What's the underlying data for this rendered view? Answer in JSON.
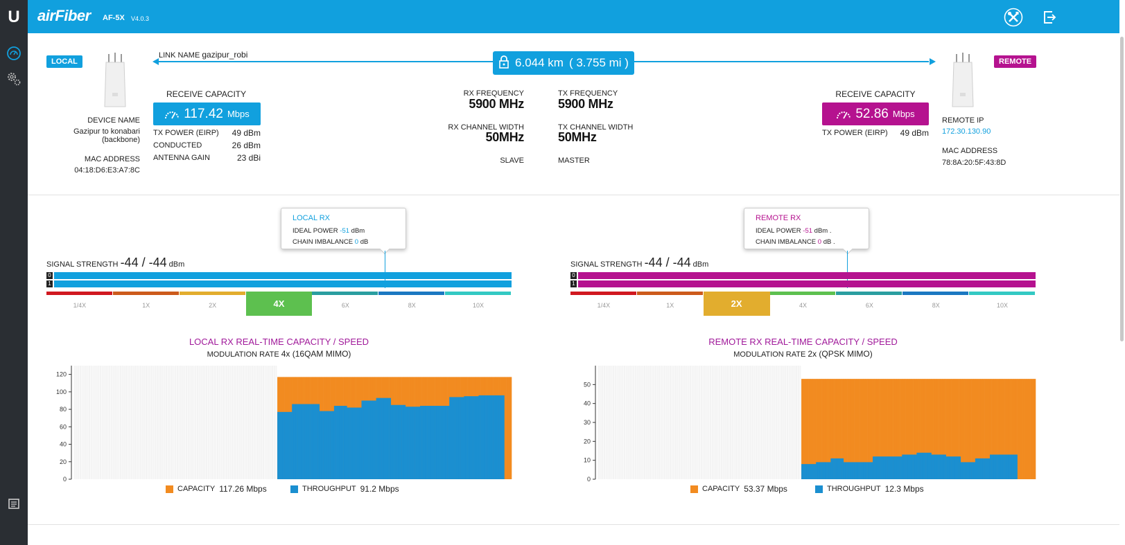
{
  "header": {
    "brand": "airFiber",
    "model": "AF-5X",
    "version": "V4.0.3",
    "tools_icon": "tools-icon",
    "logout_icon": "logout-icon"
  },
  "sidebar": {
    "logo": "U",
    "items": [
      {
        "icon": "dashboard-gauge-icon"
      },
      {
        "icon": "settings-gears-icon"
      },
      {
        "icon": "log-icon"
      }
    ]
  },
  "link": {
    "name_label": "LINK NAME",
    "name_value": "gazipur_robi",
    "distance_km": "6.044 km",
    "distance_mi": "( 3.755 mi )",
    "lock_icon": "lock-icon"
  },
  "local": {
    "badge": "LOCAL",
    "receive_capacity_label": "RECEIVE CAPACITY",
    "receive_capacity_value": "117.42",
    "receive_capacity_unit": "Mbps",
    "device_name_label": "DEVICE NAME",
    "device_name_line1": "Gazipur to konabari",
    "device_name_line2": "(backbone)",
    "mac_label": "MAC ADDRESS",
    "mac_value": "04:18:D6:E3:A7:8C",
    "tx_power_label": "TX POWER (EIRP)",
    "tx_power_value": "49 dBm",
    "conducted_label": "CONDUCTED",
    "conducted_value": "26 dBm",
    "antenna_gain_label": "ANTENNA GAIN",
    "antenna_gain_value": "23 dBi",
    "color": "#11a0de"
  },
  "remote": {
    "badge": "REMOTE",
    "receive_capacity_label": "RECEIVE CAPACITY",
    "receive_capacity_value": "52.86",
    "receive_capacity_unit": "Mbps",
    "tx_power_label": "TX POWER (EIRP)",
    "tx_power_value": "49 dBm",
    "remote_ip_label": "REMOTE IP",
    "remote_ip_value": "172.30.130.90",
    "mac_label": "MAC ADDRESS",
    "mac_value": "78:8A:20:5F:43:8D",
    "color": "#b5128f"
  },
  "radio": {
    "rx_freq_label": "RX FREQUENCY",
    "rx_freq_value": "5900 MHz",
    "tx_freq_label": "TX FREQUENCY",
    "tx_freq_value": "5900 MHz",
    "rx_width_label": "RX CHANNEL WIDTH",
    "rx_width_value": "50MHz",
    "tx_width_label": "TX CHANNEL WIDTH",
    "tx_width_value": "50MHz",
    "local_role": "SLAVE",
    "remote_role": "MASTER"
  },
  "local_rx": {
    "tooltip_title": "LOCAL RX",
    "ideal_power_label": "IDEAL POWER",
    "ideal_power_value": "-51",
    "ideal_power_unit": "dBm",
    "chain_imbalance_label": "CHAIN IMBALANCE",
    "chain_imbalance_value": "0",
    "chain_imbalance_unit": "dB",
    "signal_label": "SIGNAL STRENGTH",
    "signal_value": "-44 / -44",
    "signal_unit": "dBm",
    "chain0": "0",
    "chain1": "1",
    "modulation_steps": [
      "1/4X",
      "1X",
      "2X",
      "4X",
      "6X",
      "8X",
      "10X"
    ],
    "active_modulation": "4X"
  },
  "remote_rx": {
    "tooltip_title": "REMOTE RX",
    "ideal_power_label": "IDEAL POWER",
    "ideal_power_value": "-51",
    "ideal_power_unit": "dBm .",
    "chain_imbalance_label": "CHAIN IMBALANCE",
    "chain_imbalance_value": "0",
    "chain_imbalance_unit": "dB .",
    "signal_label": "SIGNAL STRENGTH",
    "signal_value": "-44 / -44",
    "signal_unit": "dBm",
    "chain0": "0",
    "chain1": "1",
    "modulation_steps": [
      "1/4X",
      "1X",
      "2X",
      "4X",
      "6X",
      "8X",
      "10X"
    ],
    "active_modulation": "2X"
  },
  "modulation_colors": [
    "#d0181f",
    "#cc5a1b",
    "#e2ad2e",
    "#5dc04f",
    "#2a9ea0",
    "#1b78c1",
    "#33c9c3"
  ],
  "local_chart": {
    "title": "LOCAL RX  REAL-TIME CAPACITY / SPEED",
    "sub_label": "MODULATION RATE",
    "sub_value": "4x (16QAM MIMO)",
    "legend_capacity_label": "CAPACITY",
    "legend_capacity_value": "117.26 Mbps",
    "legend_throughput_label": "THROUGHPUT",
    "legend_throughput_value": "91.2 Mbps"
  },
  "remote_chart": {
    "title": "REMOTE RX  REAL-TIME CAPACITY / SPEED",
    "sub_label": "MODULATION RATE",
    "sub_value": "2x (QPSK MIMO)",
    "legend_capacity_label": "CAPACITY",
    "legend_capacity_value": "53.37 Mbps",
    "legend_throughput_label": "THROUGHPUT",
    "legend_throughput_value": "12.3 Mbps"
  },
  "chart_data": [
    {
      "type": "bar",
      "title": "LOCAL RX  REAL-TIME CAPACITY / SPEED",
      "ylim": [
        0,
        130
      ],
      "yticks": [
        0,
        20,
        40,
        60,
        80,
        100,
        120
      ],
      "series": [
        {
          "name": "CAPACITY",
          "color": "#f28b20",
          "values": [
            117,
            117,
            117,
            117,
            117,
            117,
            117,
            117,
            117,
            117,
            117,
            117,
            117,
            117,
            117,
            117,
            117,
            117,
            117,
            117,
            117,
            117,
            117,
            117,
            117,
            117,
            117,
            117,
            117,
            117,
            117,
            117,
            117,
            117,
            117,
            117,
            117,
            117,
            117,
            117,
            117,
            117,
            117,
            117,
            117,
            117,
            117,
            117,
            117,
            117,
            117,
            117,
            117,
            117,
            117,
            117,
            117,
            117,
            117,
            117,
            117,
            117,
            117,
            117,
            117,
            117,
            117,
            117,
            117,
            117,
            117,
            117,
            117,
            117,
            117,
            117,
            117,
            117,
            117,
            117,
            117,
            117,
            117,
            117,
            117,
            117,
            117,
            117,
            117,
            117,
            117,
            117,
            117,
            117,
            117,
            117,
            117,
            117,
            117,
            117,
            117,
            117,
            117,
            117,
            117,
            117,
            117,
            117,
            117,
            117,
            117,
            117,
            117,
            117,
            117,
            117,
            117,
            117,
            117,
            117,
            117,
            117,
            117,
            117,
            117,
            117,
            117,
            117
          ]
        },
        {
          "name": "THROUGHPUT",
          "color": "#1b8fd0",
          "values": [
            77,
            77,
            77,
            77,
            77,
            77,
            77,
            77,
            86,
            86,
            86,
            86,
            86,
            86,
            86,
            86,
            86,
            86,
            86,
            86,
            86,
            86,
            86,
            78,
            78,
            78,
            78,
            78,
            78,
            78,
            78,
            84,
            84,
            84,
            84,
            84,
            84,
            84,
            82,
            82,
            82,
            82,
            82,
            82,
            82,
            82,
            90,
            90,
            90,
            90,
            90,
            90,
            90,
            90,
            93,
            93,
            93,
            93,
            93,
            93,
            93,
            93,
            85,
            85,
            85,
            85,
            85,
            85,
            85,
            85,
            83,
            83,
            83,
            83,
            83,
            83,
            83,
            83,
            84,
            84,
            84,
            84,
            84,
            84,
            84,
            84,
            84,
            84,
            84,
            84,
            84,
            84,
            84,
            84,
            94,
            94,
            94,
            94,
            94,
            94,
            94,
            94,
            95,
            95,
            95,
            95,
            95,
            95,
            95,
            95,
            96,
            96,
            96,
            96,
            96,
            96,
            96,
            96,
            96,
            96,
            96,
            96,
            96,
            96
          ]
        }
      ],
      "empty_slots_before": 111
    },
    {
      "type": "bar",
      "title": "REMOTE RX  REAL-TIME CAPACITY / SPEED",
      "ylim": [
        0,
        60
      ],
      "yticks": [
        0,
        10,
        20,
        30,
        40,
        50
      ],
      "series": [
        {
          "name": "CAPACITY",
          "color": "#f28b20",
          "values": [
            53,
            53,
            53,
            53,
            53,
            53,
            53,
            53,
            53,
            53,
            53,
            53,
            53,
            53,
            53,
            53,
            53,
            53,
            53,
            53,
            53,
            53,
            53,
            53,
            53,
            53,
            53,
            53,
            53,
            53,
            53,
            53,
            53,
            53,
            53,
            53,
            53,
            53,
            53,
            53,
            53,
            53,
            53,
            53,
            53,
            53,
            53,
            53,
            53,
            53,
            53,
            53,
            53,
            53,
            53,
            53,
            53,
            53,
            53,
            53,
            53,
            53,
            53,
            53,
            53,
            53,
            53,
            53,
            53,
            53,
            53,
            53,
            53,
            53,
            53,
            53,
            53,
            53,
            53,
            53,
            53,
            53,
            53,
            53,
            53,
            53,
            53,
            53,
            53,
            53,
            53,
            53,
            53,
            53,
            53,
            53,
            53,
            53,
            53,
            53,
            53,
            53,
            53,
            53,
            53,
            53,
            53,
            53,
            53,
            53,
            53,
            53,
            53,
            53,
            53,
            53,
            53,
            53,
            53,
            53,
            53,
            53,
            53,
            53,
            53,
            53,
            53,
            53
          ]
        },
        {
          "name": "THROUGHPUT",
          "color": "#1b8fd0",
          "values": [
            8,
            8,
            8,
            8,
            8,
            8,
            8,
            8,
            9,
            9,
            9,
            9,
            9,
            9,
            9,
            9,
            11,
            11,
            11,
            11,
            11,
            11,
            11,
            9,
            9,
            9,
            9,
            9,
            9,
            9,
            9,
            9,
            9,
            9,
            9,
            9,
            9,
            9,
            9,
            12,
            12,
            12,
            12,
            12,
            12,
            12,
            12,
            12,
            12,
            12,
            12,
            12,
            12,
            12,
            12,
            13,
            13,
            13,
            13,
            13,
            13,
            13,
            13,
            14,
            14,
            14,
            14,
            14,
            14,
            14,
            14,
            13,
            13,
            13,
            13,
            13,
            13,
            13,
            13,
            12,
            12,
            12,
            12,
            12,
            12,
            12,
            12,
            9,
            9,
            9,
            9,
            9,
            9,
            9,
            9,
            11,
            11,
            11,
            11,
            11,
            11,
            11,
            11,
            13,
            13,
            13,
            13,
            13,
            13,
            13,
            13,
            13,
            13,
            13,
            13,
            13,
            13,
            13
          ]
        }
      ],
      "empty_slots_before": 111
    }
  ]
}
